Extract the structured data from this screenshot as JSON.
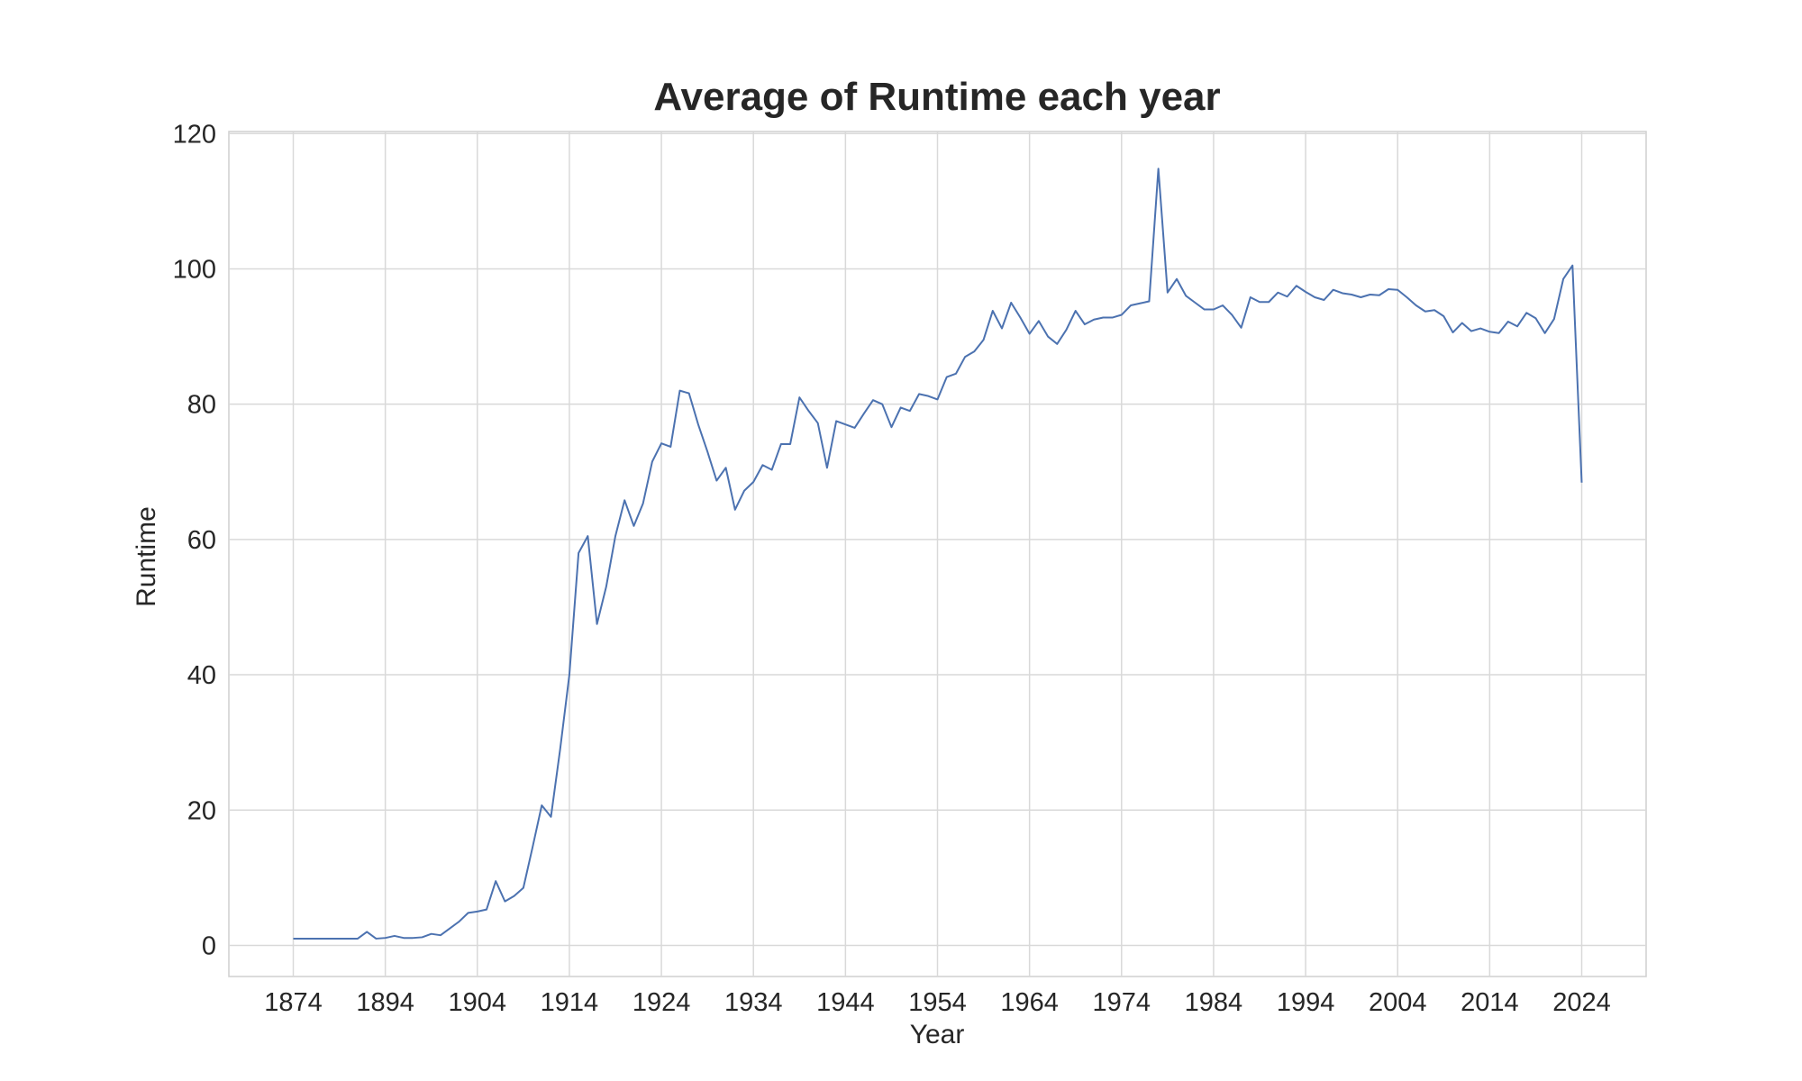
{
  "chart_data": {
    "type": "line",
    "title": "Average of Runtime each year",
    "x_label": "Year",
    "y_label": "Runtime",
    "categories": [
      "1874",
      null,
      null,
      null,
      null,
      null,
      null,
      null,
      null,
      null,
      "1894",
      null,
      null,
      null,
      null,
      null,
      null,
      null,
      null,
      null,
      "1904",
      null,
      null,
      null,
      null,
      null,
      null,
      null,
      null,
      null,
      "1914",
      null,
      null,
      null,
      null,
      null,
      null,
      null,
      null,
      null,
      "1924",
      null,
      null,
      null,
      null,
      null,
      null,
      null,
      null,
      null,
      "1934",
      null,
      null,
      null,
      null,
      null,
      null,
      null,
      null,
      null,
      "1944",
      null,
      null,
      null,
      null,
      null,
      null,
      null,
      null,
      null,
      "1954",
      null,
      null,
      null,
      null,
      null,
      null,
      null,
      null,
      null,
      "1964",
      null,
      null,
      null,
      null,
      null,
      null,
      null,
      null,
      null,
      "1974",
      null,
      null,
      null,
      null,
      null,
      null,
      null,
      null,
      null,
      "1984",
      null,
      null,
      null,
      null,
      null,
      null,
      null,
      null,
      null,
      "1994",
      null,
      null,
      null,
      null,
      null,
      null,
      null,
      null,
      null,
      "2004",
      null,
      null,
      null,
      null,
      null,
      null,
      null,
      null,
      null,
      "2014",
      null,
      null,
      null,
      null,
      null,
      null,
      null,
      null,
      null,
      "2024"
    ],
    "values": [
      1,
      1,
      1,
      1,
      1,
      1,
      1,
      1,
      2,
      1,
      1.1,
      1.4,
      1.1,
      1.1,
      1.2,
      1.7,
      1.5,
      2.5,
      3.5,
      4.8,
      5,
      5.3,
      9.5,
      6.5,
      7.3,
      8.5,
      14.5,
      20.7,
      19,
      29,
      40,
      58,
      60.5,
      47.5,
      53,
      60.5,
      65.8,
      62,
      65.3,
      71.5,
      74.2,
      73.7,
      82,
      81.6,
      77,
      73,
      68.7,
      70.6,
      64.4,
      67.2,
      68.5,
      71,
      70.3,
      74.1,
      74.1,
      81,
      79,
      77.2,
      70.6,
      77.5,
      77,
      76.5,
      78.6,
      80.6,
      80,
      76.6,
      79.5,
      79,
      81.5,
      81.2,
      80.7,
      84,
      84.5,
      87,
      87.8,
      89.5,
      93.8,
      91.2,
      95,
      92.8,
      90.4,
      92.3,
      90,
      88.9,
      91,
      93.8,
      91.8,
      92.5,
      92.8,
      92.8,
      93.2,
      94.6,
      94.9,
      95.2,
      114.8,
      96.5,
      98.5,
      96,
      95,
      94,
      94,
      94.6,
      93.2,
      91.3,
      95.8,
      95.1,
      95.1,
      96.5,
      95.9,
      97.5,
      96.6,
      95.8,
      95.4,
      96.9,
      96.4,
      96.2,
      95.8,
      96.2,
      96.1,
      97,
      96.9,
      95.8,
      94.6,
      93.7,
      93.9,
      93,
      90.6,
      92,
      90.8,
      91.2,
      90.7,
      90.5,
      92.2,
      91.5,
      93.5,
      92.7,
      90.5,
      92.6,
      98.5,
      100.5,
      68.4
    ],
    "color": "#4c72b0",
    "ylim": [
      -4.6,
      120.3
    ],
    "yticks": [
      0,
      20,
      40,
      60,
      80,
      100,
      120
    ],
    "grid": true
  }
}
